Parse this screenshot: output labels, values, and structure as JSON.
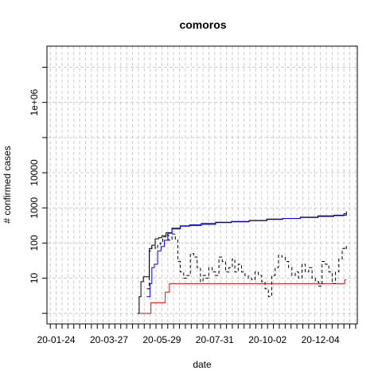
{
  "chart_data": {
    "type": "line",
    "title": "comoros",
    "xlabel": "date",
    "ylabel": "# confirmed cases",
    "y_scale": "log",
    "grid": true,
    "x_tick_labels": [
      "20-01-24",
      "20-03-27",
      "20-05-29",
      "20-07-31",
      "20-10-02",
      "20-12-04"
    ],
    "y_tick_labels": [
      "10",
      "100",
      "1000",
      "10000",
      "1e+06"
    ],
    "xlim": [
      "2020-01-13",
      "2021-01-17"
    ],
    "ylim_log10": [
      -0.3,
      7.6
    ],
    "series": [
      {
        "color": "#000000",
        "style": "solid",
        "x": [
          "2020-04-30",
          "2020-05-02",
          "2020-05-04",
          "2020-05-07",
          "2020-05-11",
          "2020-05-14",
          "2020-05-17",
          "2020-05-21",
          "2020-05-25",
          "2020-05-29",
          "2020-06-03",
          "2020-06-10",
          "2020-06-20",
          "2020-07-01",
          "2020-07-15",
          "2020-08-01",
          "2020-08-20",
          "2020-09-10",
          "2020-10-01",
          "2020-10-20",
          "2020-11-10",
          "2020-12-01",
          "2020-12-20",
          "2021-01-01",
          "2021-01-04"
        ],
        "y": [
          1,
          3,
          8,
          11,
          11,
          70,
          87,
          132,
          141,
          162,
          197,
          265,
          309,
          317,
          340,
          390,
          410,
          440,
          480,
          500,
          545,
          590,
          620,
          680,
          787
        ]
      },
      {
        "color": "#0000ff",
        "style": "solid",
        "x": [
          "2020-05-11",
          "2020-05-15",
          "2020-05-17",
          "2020-05-20",
          "2020-05-24",
          "2020-05-28",
          "2020-06-01",
          "2020-06-05",
          "2020-06-10",
          "2020-06-20",
          "2020-07-01",
          "2020-07-15",
          "2020-08-01",
          "2020-08-20",
          "2020-09-10",
          "2020-10-01",
          "2020-10-20",
          "2020-11-10",
          "2020-12-01",
          "2020-12-20",
          "2021-01-01",
          "2021-01-04"
        ],
        "y": [
          3,
          7,
          20,
          25,
          60,
          80,
          120,
          190,
          250,
          300,
          330,
          360,
          380,
          400,
          430,
          470,
          500,
          530,
          570,
          600,
          620,
          700
        ]
      },
      {
        "color": "#ff0000",
        "style": "solid",
        "x": [
          "2020-05-02",
          "2020-05-15",
          "2020-05-16",
          "2020-06-01",
          "2020-06-02",
          "2020-06-06",
          "2020-06-07",
          "2021-01-01",
          "2021-01-02",
          "2021-01-04"
        ],
        "y": [
          1,
          1,
          2,
          2,
          4,
          4,
          7,
          7,
          9,
          9
        ]
      },
      {
        "color": "#000000",
        "style": "dashed",
        "x": [
          "2020-05-11",
          "2020-05-14",
          "2020-05-17",
          "2020-05-21",
          "2020-05-24",
          "2020-05-27",
          "2020-05-30",
          "2020-06-03",
          "2020-06-06",
          "2020-06-10",
          "2020-06-14",
          "2020-06-17",
          "2020-06-20",
          "2020-06-24",
          "2020-06-28",
          "2020-07-02",
          "2020-07-06",
          "2020-07-10",
          "2020-07-14",
          "2020-07-17",
          "2020-07-20",
          "2020-07-24",
          "2020-07-28",
          "2020-08-01",
          "2020-08-05",
          "2020-08-09",
          "2020-08-13",
          "2020-08-17",
          "2020-08-21",
          "2020-08-24",
          "2020-08-28",
          "2020-09-01",
          "2020-09-05",
          "2020-09-09",
          "2020-09-13",
          "2020-09-17",
          "2020-09-21",
          "2020-09-25",
          "2020-09-29",
          "2020-10-03",
          "2020-10-07",
          "2020-10-11",
          "2020-10-15",
          "2020-10-19",
          "2020-10-23",
          "2020-10-27",
          "2020-10-31",
          "2020-11-04",
          "2020-11-08",
          "2020-11-12",
          "2020-11-16",
          "2020-11-20",
          "2020-11-24",
          "2020-11-28",
          "2020-12-02",
          "2020-12-06",
          "2020-12-10",
          "2020-12-14",
          "2020-12-18",
          "2020-12-22",
          "2020-12-26",
          "2020-12-30",
          "2021-01-02",
          "2021-01-04"
        ],
        "y": [
          5,
          60,
          80,
          70,
          90,
          100,
          150,
          170,
          120,
          180,
          130,
          30,
          15,
          10,
          12,
          50,
          40,
          20,
          8,
          12,
          10,
          20,
          15,
          12,
          40,
          30,
          15,
          20,
          35,
          15,
          25,
          15,
          12,
          10,
          9,
          15,
          12,
          8,
          5,
          3,
          12,
          20,
          45,
          40,
          30,
          20,
          12,
          15,
          10,
          25,
          15,
          20,
          10,
          8,
          6,
          30,
          25,
          15,
          7,
          15,
          35,
          70,
          80,
          60
        ]
      }
    ]
  }
}
